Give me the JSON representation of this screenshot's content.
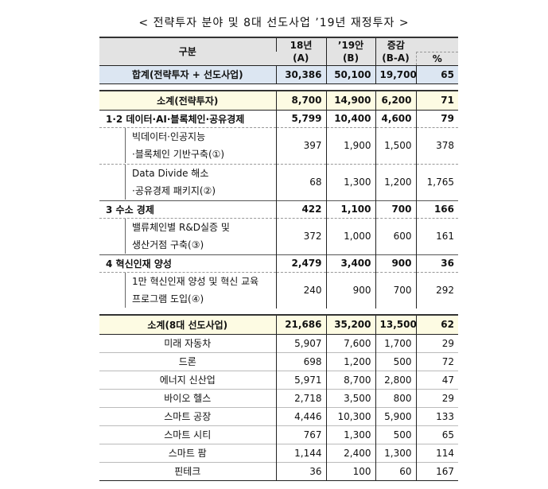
{
  "title": "< 전략투자 분야 및 8대 선도사업 ’19년 재정투자 >",
  "header": {
    "category": "구분",
    "col_a_line1": "18년",
    "col_a_line2": "(A)",
    "col_b_line1": "’19안",
    "col_b_line2": "(B)",
    "col_c_line1": "증감",
    "col_c_line2": "(B-A)",
    "col_pct": "%"
  },
  "total": {
    "label": "합계(전략투자 + 선도사업)",
    "a": "30,386",
    "b": "50,100",
    "diff": "19,700",
    "pct": "65"
  },
  "strategic": {
    "subtotal": {
      "label": "소계(전략투자)",
      "a": "8,700",
      "b": "14,900",
      "diff": "6,200",
      "pct": "71"
    },
    "rows": [
      {
        "type": "cat",
        "label": "1·2 데이터·AI·블록체인·공유경제",
        "a": "5,799",
        "b": "10,400",
        "diff": "4,600",
        "pct": "79"
      },
      {
        "type": "det",
        "line1": "빅데이터·인공지능",
        "line2": "·블록체인 기반구축(①)",
        "a": "397",
        "b": "1,900",
        "diff": "1,500",
        "pct": "378"
      },
      {
        "type": "det",
        "line1": "Data Divide 해소",
        "line2": "·공유경제 패키지(②)",
        "a": "68",
        "b": "1,300",
        "diff": "1,200",
        "pct": "1,765"
      },
      {
        "type": "cat",
        "label": "3 수소 경제",
        "a": "422",
        "b": "1,100",
        "diff": "700",
        "pct": "166"
      },
      {
        "type": "det",
        "line1": "밸류체인별 R&D실증 및",
        "line2": "생산거점 구축(③)",
        "a": "372",
        "b": "1,000",
        "diff": "600",
        "pct": "161"
      },
      {
        "type": "cat",
        "label": "4 혁신인재 양성",
        "a": "2,479",
        "b": "3,400",
        "diff": "900",
        "pct": "36"
      },
      {
        "type": "det",
        "line1": "1만 혁신인재 양성 및 혁신 교육",
        "line2": "프로그램 도입(④)",
        "a": "240",
        "b": "900",
        "diff": "700",
        "pct": "292"
      }
    ]
  },
  "leading": {
    "subtotal": {
      "label": "소계(8대 선도사업)",
      "a": "21,686",
      "b": "35,200",
      "diff": "13,500",
      "pct": "62"
    },
    "rows": [
      {
        "label": "미래 자동차",
        "a": "5,907",
        "b": "7,600",
        "diff": "1,700",
        "pct": "29"
      },
      {
        "label": "드론",
        "a": "698",
        "b": "1,200",
        "diff": "500",
        "pct": "72"
      },
      {
        "label": "에너지 신산업",
        "a": "5,971",
        "b": "8,700",
        "diff": "2,800",
        "pct": "47"
      },
      {
        "label": "바이오 헬스",
        "a": "2,718",
        "b": "3,500",
        "diff": "800",
        "pct": "29"
      },
      {
        "label": "스마트 공장",
        "a": "4,446",
        "b": "10,300",
        "diff": "5,900",
        "pct": "133"
      },
      {
        "label": "스마트 시티",
        "a": "767",
        "b": "1,300",
        "diff": "500",
        "pct": "65"
      },
      {
        "label": "스마트 팜",
        "a": "1,144",
        "b": "2,400",
        "diff": "1,300",
        "pct": "114"
      },
      {
        "label": "핀테크",
        "a": "36",
        "b": "100",
        "diff": "60",
        "pct": "167"
      }
    ]
  }
}
